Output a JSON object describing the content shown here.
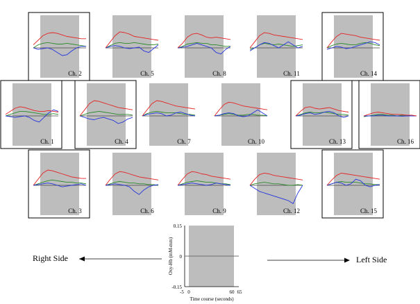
{
  "chart_data": {
    "type": "line",
    "title": "",
    "x_range": [
      -5,
      65
    ],
    "y_range": [
      -0.15,
      0.15
    ],
    "task_window": [
      0,
      60
    ],
    "series_colors": {
      "red": "#e52222",
      "green": "#2a8a2a",
      "blue": "#2233dd"
    },
    "channels": [
      {
        "label": "Ch. 2",
        "boxed": true,
        "red": [
          0.02,
          0.05,
          0.08,
          0.095,
          0.1,
          0.095,
          0.085,
          0.075,
          0.07,
          0.065,
          0.06,
          0.06
        ],
        "green": [
          0.0,
          0.02,
          0.03,
          0.035,
          0.03,
          0.025,
          0.025,
          0.03,
          0.025,
          0.02,
          0.015,
          0.01
        ],
        "blue": [
          0.0,
          -0.01,
          -0.005,
          0.0,
          -0.01,
          -0.03,
          -0.05,
          -0.045,
          -0.02,
          0.0,
          0.01,
          0.01
        ]
      },
      {
        "label": "Ch. 5",
        "boxed": false,
        "red": [
          0.0,
          0.04,
          0.08,
          0.105,
          0.1,
          0.09,
          0.075,
          0.07,
          0.065,
          0.06,
          0.055,
          0.05
        ],
        "green": [
          0.0,
          0.015,
          0.03,
          0.035,
          0.03,
          0.03,
          0.035,
          0.03,
          0.025,
          0.02,
          0.02,
          0.025
        ],
        "blue": [
          0.0,
          0.01,
          0.015,
          0.01,
          0.0,
          -0.005,
          0.0,
          0.005,
          -0.02,
          -0.03,
          -0.005,
          0.02
        ]
      },
      {
        "label": "Ch. 8",
        "boxed": false,
        "red": [
          0.0,
          0.03,
          0.07,
          0.09,
          0.095,
          0.085,
          0.07,
          0.065,
          0.07,
          0.065,
          0.06,
          0.055
        ],
        "green": [
          0.0,
          0.01,
          0.025,
          0.03,
          0.035,
          0.03,
          0.03,
          0.02,
          0.02,
          0.015,
          0.01,
          0.01
        ],
        "blue": [
          0.0,
          0.005,
          0.01,
          0.02,
          0.03,
          0.02,
          0.01,
          0.0,
          -0.03,
          -0.04,
          -0.01,
          0.01
        ]
      },
      {
        "label": "Ch. 11",
        "boxed": false,
        "red": [
          0.0,
          0.04,
          0.08,
          0.1,
          0.095,
          0.085,
          0.08,
          0.075,
          0.07,
          0.065,
          0.06,
          0.055
        ],
        "green": [
          -0.01,
          0.0,
          0.02,
          0.03,
          0.025,
          0.02,
          0.025,
          0.02,
          0.015,
          0.01,
          0.015,
          0.02
        ],
        "blue": [
          -0.02,
          0.0,
          0.02,
          0.035,
          0.03,
          0.015,
          0.0,
          0.02,
          0.04,
          0.02,
          0.0,
          0.01
        ]
      },
      {
        "label": "Ch. 14",
        "boxed": true,
        "red": [
          0.0,
          0.04,
          0.075,
          0.095,
          0.09,
          0.085,
          0.08,
          0.07,
          0.065,
          0.06,
          0.055,
          0.05
        ],
        "green": [
          0.0,
          0.015,
          0.025,
          0.03,
          0.025,
          0.02,
          0.02,
          0.03,
          0.035,
          0.03,
          0.02,
          0.015
        ],
        "blue": [
          -0.01,
          0.0,
          0.01,
          0.005,
          -0.005,
          0.0,
          0.01,
          0.02,
          0.03,
          0.04,
          0.035,
          0.02
        ]
      },
      {
        "label": "Ch. 1",
        "boxed": true,
        "red": [
          0.01,
          0.03,
          0.05,
          0.06,
          0.055,
          0.045,
          0.035,
          0.03,
          0.03,
          0.035,
          0.03,
          0.025
        ],
        "green": [
          0.0,
          0.01,
          0.02,
          0.03,
          0.03,
          0.025,
          0.02,
          0.015,
          0.01,
          0.01,
          0.015,
          0.01
        ],
        "blue": [
          0.0,
          -0.005,
          -0.01,
          -0.005,
          0.0,
          -0.01,
          -0.03,
          -0.04,
          -0.01,
          0.02,
          0.04,
          0.03
        ]
      },
      {
        "label": "Ch. 4",
        "boxed": true,
        "red": [
          0.0,
          0.04,
          0.08,
          0.1,
          0.095,
          0.085,
          0.075,
          0.065,
          0.055,
          0.05,
          0.045,
          0.04
        ],
        "green": [
          0.0,
          0.01,
          0.02,
          0.025,
          0.03,
          0.025,
          0.02,
          0.015,
          0.01,
          0.01,
          0.01,
          0.005
        ],
        "blue": [
          0.0,
          -0.01,
          -0.02,
          -0.025,
          -0.015,
          -0.01,
          -0.02,
          -0.03,
          -0.05,
          -0.04,
          -0.02,
          -0.01
        ]
      },
      {
        "label": "Ch. 7",
        "boxed": false,
        "red": [
          0.0,
          0.04,
          0.08,
          0.1,
          0.095,
          0.085,
          0.075,
          0.065,
          0.06,
          0.055,
          0.05,
          0.045
        ],
        "green": [
          0.0,
          0.015,
          0.025,
          0.03,
          0.025,
          0.02,
          0.02,
          0.02,
          0.015,
          0.01,
          0.01,
          0.005
        ],
        "blue": [
          0.0,
          0.01,
          0.015,
          0.02,
          0.015,
          0.0,
          0.005,
          0.02,
          0.025,
          0.015,
          0.005,
          0.0
        ]
      },
      {
        "label": "Ch. 10",
        "boxed": false,
        "red": [
          0.0,
          0.04,
          0.075,
          0.09,
          0.085,
          0.075,
          0.065,
          0.06,
          0.055,
          0.05,
          0.045,
          0.04
        ],
        "green": [
          0.0,
          0.005,
          0.01,
          0.015,
          0.01,
          0.005,
          0.005,
          0.01,
          0.01,
          0.005,
          0.005,
          0.0
        ],
        "blue": [
          0.0,
          0.005,
          0.015,
          0.02,
          0.015,
          0.0,
          -0.005,
          0.0,
          0.02,
          0.04,
          0.02,
          0.0
        ]
      },
      {
        "label": "Ch. 13",
        "boxed": true,
        "red": [
          0.0,
          0.03,
          0.055,
          0.06,
          0.05,
          0.045,
          0.05,
          0.055,
          0.045,
          0.035,
          0.03,
          0.025
        ],
        "green": [
          0.0,
          0.01,
          0.02,
          0.025,
          0.02,
          0.02,
          0.025,
          0.02,
          0.015,
          0.01,
          0.01,
          0.005
        ],
        "blue": [
          0.0,
          0.005,
          0.015,
          0.02,
          0.01,
          0.015,
          0.025,
          0.03,
          0.02,
          0.0,
          -0.01,
          0.0
        ]
      },
      {
        "label": "Ch. 16",
        "boxed": true,
        "red": [
          0.0,
          0.01,
          0.02,
          0.025,
          0.02,
          0.015,
          0.01,
          0.01,
          0.008,
          0.005,
          0.005,
          0.0
        ],
        "green": [
          -0.005,
          0.0,
          0.005,
          0.01,
          0.01,
          0.005,
          0.005,
          0.0,
          0.005,
          0.005,
          0.0,
          0.0
        ],
        "blue": [
          0.0,
          0.0,
          0.0,
          0.005,
          0.005,
          0.0,
          0.0,
          0.0,
          -0.002,
          0.0,
          0.0,
          0.0
        ]
      },
      {
        "label": "Ch. 3",
        "boxed": true,
        "red": [
          0.0,
          0.04,
          0.08,
          0.1,
          0.095,
          0.085,
          0.075,
          0.065,
          0.055,
          0.05,
          0.045,
          0.045
        ],
        "green": [
          0.0,
          0.01,
          0.02,
          0.03,
          0.035,
          0.03,
          0.025,
          0.02,
          0.02,
          0.015,
          0.015,
          0.01
        ],
        "blue": [
          0.0,
          0.005,
          0.01,
          0.015,
          0.01,
          0.0,
          -0.01,
          -0.005,
          0.0,
          0.005,
          0.01,
          0.0
        ]
      },
      {
        "label": "Ch. 6",
        "boxed": false,
        "red": [
          0.0,
          0.04,
          0.075,
          0.09,
          0.085,
          0.075,
          0.065,
          0.055,
          0.05,
          0.045,
          0.04,
          0.035
        ],
        "green": [
          0.0,
          0.01,
          0.02,
          0.025,
          0.02,
          0.015,
          0.015,
          0.01,
          0.01,
          0.005,
          0.005,
          0.0
        ],
        "blue": [
          0.0,
          0.005,
          0.01,
          0.005,
          0.0,
          -0.01,
          -0.04,
          -0.06,
          -0.03,
          -0.01,
          0.0,
          0.005
        ]
      },
      {
        "label": "Ch. 9",
        "boxed": false,
        "red": [
          0.0,
          0.04,
          0.075,
          0.09,
          0.085,
          0.075,
          0.07,
          0.06,
          0.055,
          0.05,
          0.045,
          0.04
        ],
        "green": [
          0.0,
          0.01,
          0.02,
          0.025,
          0.03,
          0.025,
          0.02,
          0.02,
          0.015,
          0.01,
          0.01,
          0.005
        ],
        "blue": [
          0.0,
          0.005,
          0.01,
          0.015,
          0.01,
          0.005,
          0.0,
          0.005,
          0.015,
          0.01,
          0.005,
          0.0
        ]
      },
      {
        "label": "Ch. 12",
        "boxed": false,
        "red": [
          0.0,
          0.04,
          0.07,
          0.08,
          0.075,
          0.065,
          0.06,
          0.055,
          0.05,
          0.045,
          0.04,
          0.035
        ],
        "green": [
          0.0,
          0.01,
          0.015,
          0.02,
          0.015,
          0.01,
          0.01,
          0.005,
          0.0,
          0.0,
          0.005,
          0.0
        ],
        "blue": [
          0.0,
          -0.02,
          -0.04,
          -0.05,
          -0.06,
          -0.07,
          -0.08,
          -0.09,
          -0.1,
          -0.12,
          -0.05,
          0.0
        ]
      },
      {
        "label": "Ch. 15",
        "boxed": true,
        "red": [
          0.0,
          0.035,
          0.065,
          0.08,
          0.075,
          0.07,
          0.065,
          0.06,
          0.055,
          0.05,
          0.045,
          0.04
        ],
        "green": [
          0.0,
          0.01,
          0.02,
          0.025,
          0.02,
          0.02,
          0.02,
          0.015,
          0.01,
          0.01,
          0.005,
          0.005
        ],
        "blue": [
          0.0,
          0.01,
          0.02,
          0.015,
          0.0,
          0.01,
          0.04,
          0.03,
          0.0,
          -0.01,
          0.0,
          0.005
        ]
      }
    ],
    "legend_axis": {
      "ylabel": "Oxy-Hb (mM-mm)",
      "xlabel": "Time course (seconds)",
      "ytick_labels": [
        "0.15",
        "0",
        "-0.15"
      ],
      "xtick_labels": [
        "-5",
        "0",
        "60",
        "65"
      ]
    },
    "annotations": {
      "right_side": "Right Side",
      "left_side": "Left Side"
    }
  }
}
